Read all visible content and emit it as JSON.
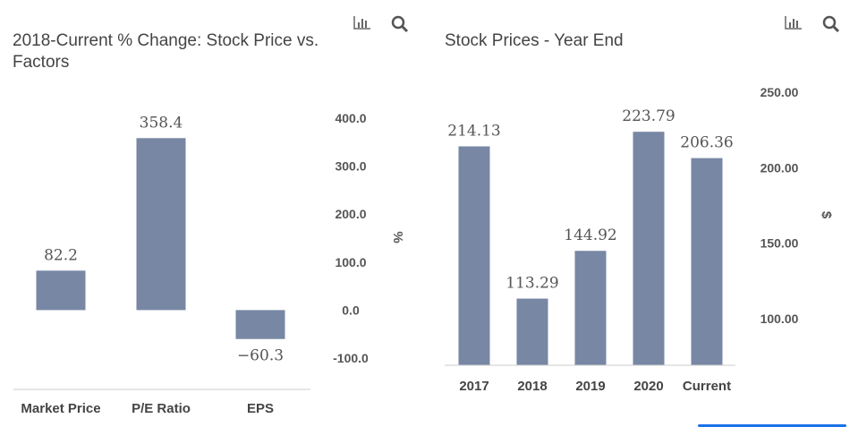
{
  "toolbar": {
    "chart_icon": "bar-chart-icon",
    "search_icon": "search-icon"
  },
  "chart_data": [
    {
      "type": "bar",
      "title": "2018-Current % Change: Stock Price vs. Factors",
      "categories": [
        "Market Price",
        "P/E Ratio",
        "EPS"
      ],
      "values": [
        82.2,
        358.4,
        -60.3
      ],
      "labels": [
        "82.2",
        "358.4",
        "−60.3"
      ],
      "ylabel": "%",
      "ylim": [
        -100,
        400
      ],
      "yticks": [
        "400.0",
        "300.0",
        "200.0",
        "100.0",
        "0.0",
        "-100.0"
      ],
      "ytick_values": [
        400,
        300,
        200,
        100,
        0,
        -100
      ],
      "color": "#7787a4",
      "axis": "right",
      "grid": false
    },
    {
      "type": "bar",
      "title": "Stock Prices - Year End",
      "categories": [
        "2017",
        "2018",
        "2019",
        "2020",
        "Current"
      ],
      "values": [
        214.13,
        113.29,
        144.92,
        223.79,
        206.36
      ],
      "labels": [
        "214.13",
        "113.29",
        "144.92",
        "223.79",
        "206.36"
      ],
      "ylabel": "$",
      "ylim": [
        70,
        250
      ],
      "yticks": [
        "250.00",
        "200.00",
        "150.00",
        "100.00"
      ],
      "ytick_values": [
        250,
        200,
        150,
        100
      ],
      "color": "#7787a4",
      "axis": "right",
      "grid": false
    }
  ]
}
